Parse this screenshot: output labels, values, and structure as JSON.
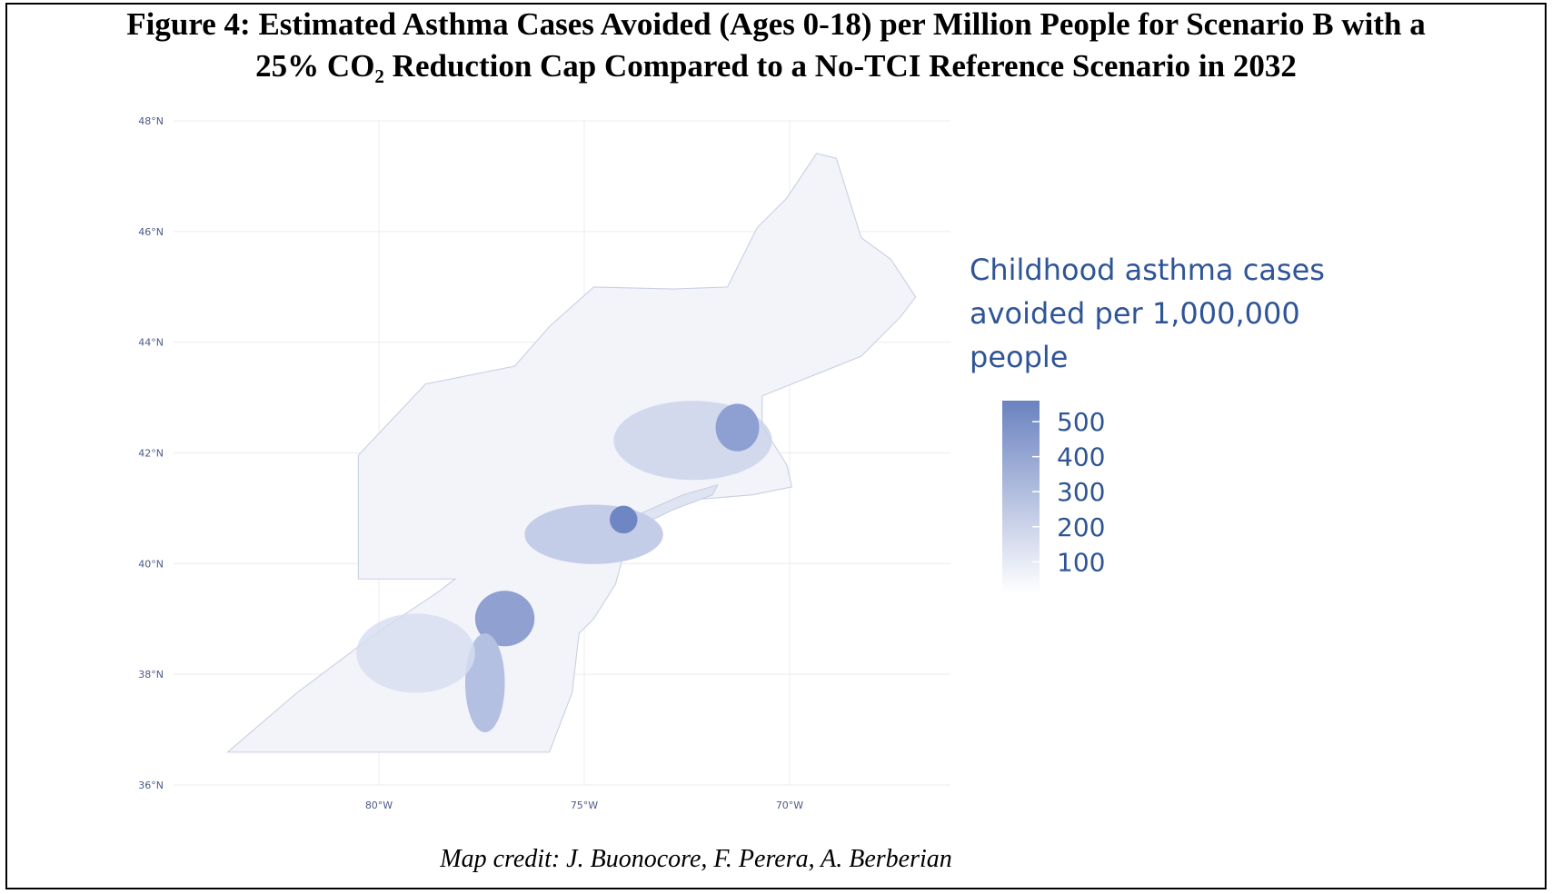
{
  "header": {
    "title_line1": "Figure 4: Estimated Asthma Cases Avoided (Ages 0-18) per Million People for Scenario B with a",
    "title_line2": "25% CO₂ Reduction Cap Compared to a No-TCI Reference Scenario in 2032"
  },
  "map": {
    "lat_ticks": [
      {
        "value": 48,
        "label": "48°N"
      },
      {
        "value": 46,
        "label": "46°N"
      },
      {
        "value": 44,
        "label": "44°N"
      },
      {
        "value": 42,
        "label": "42°N"
      },
      {
        "value": 40,
        "label": "40°N"
      },
      {
        "value": 38,
        "label": "38°N"
      },
      {
        "value": 36,
        "label": "36°N"
      }
    ],
    "lon_ticks": [
      {
        "value": -80,
        "label": "80°W"
      },
      {
        "value": -75,
        "label": "75°W"
      },
      {
        "value": -70,
        "label": "70°W"
      }
    ],
    "grid": true
  },
  "legend": {
    "title_lines": [
      "Childhood asthma cases",
      "avoided per 1,000,000",
      "people"
    ],
    "ticks": [
      500,
      400,
      300,
      200,
      100
    ],
    "colorbar_lim": [
      10,
      560
    ],
    "color_high": "#6a82c0",
    "color_low": "#ffffff"
  },
  "credit": "Map credit: J. Buonocore, F. Perera, A. Berberian"
}
